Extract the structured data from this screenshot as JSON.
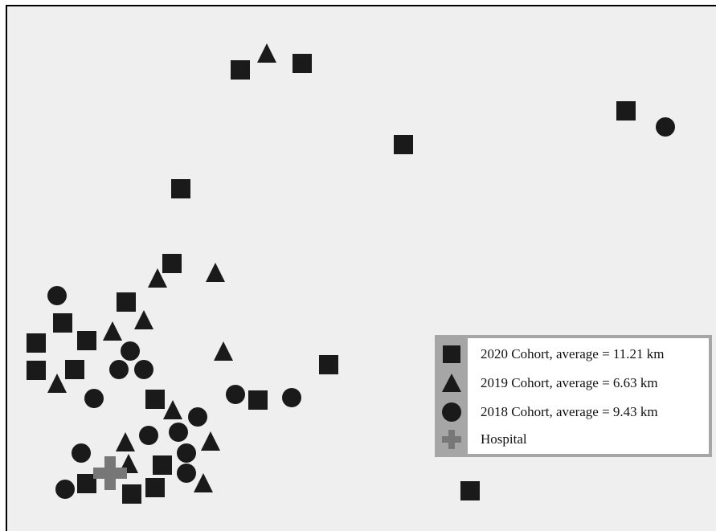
{
  "legend": {
    "items": [
      {
        "shape": "square",
        "label": "2020 Cohort, average = 11.21 km",
        "color": "#1a1a1a"
      },
      {
        "shape": "triangle",
        "label": "2019 Cohort, average = 6.63 km",
        "color": "#1a1a1a"
      },
      {
        "shape": "circle",
        "label": "2018 Cohort, average = 9.43 km",
        "color": "#1a1a1a"
      },
      {
        "shape": "cross",
        "label": "Hospital",
        "color": "#777777"
      }
    ]
  },
  "colors": {
    "background": "#efefef",
    "marker": "#1a1a1a",
    "hospital": "#777777",
    "legend_border": "#a6a6a6"
  }
}
